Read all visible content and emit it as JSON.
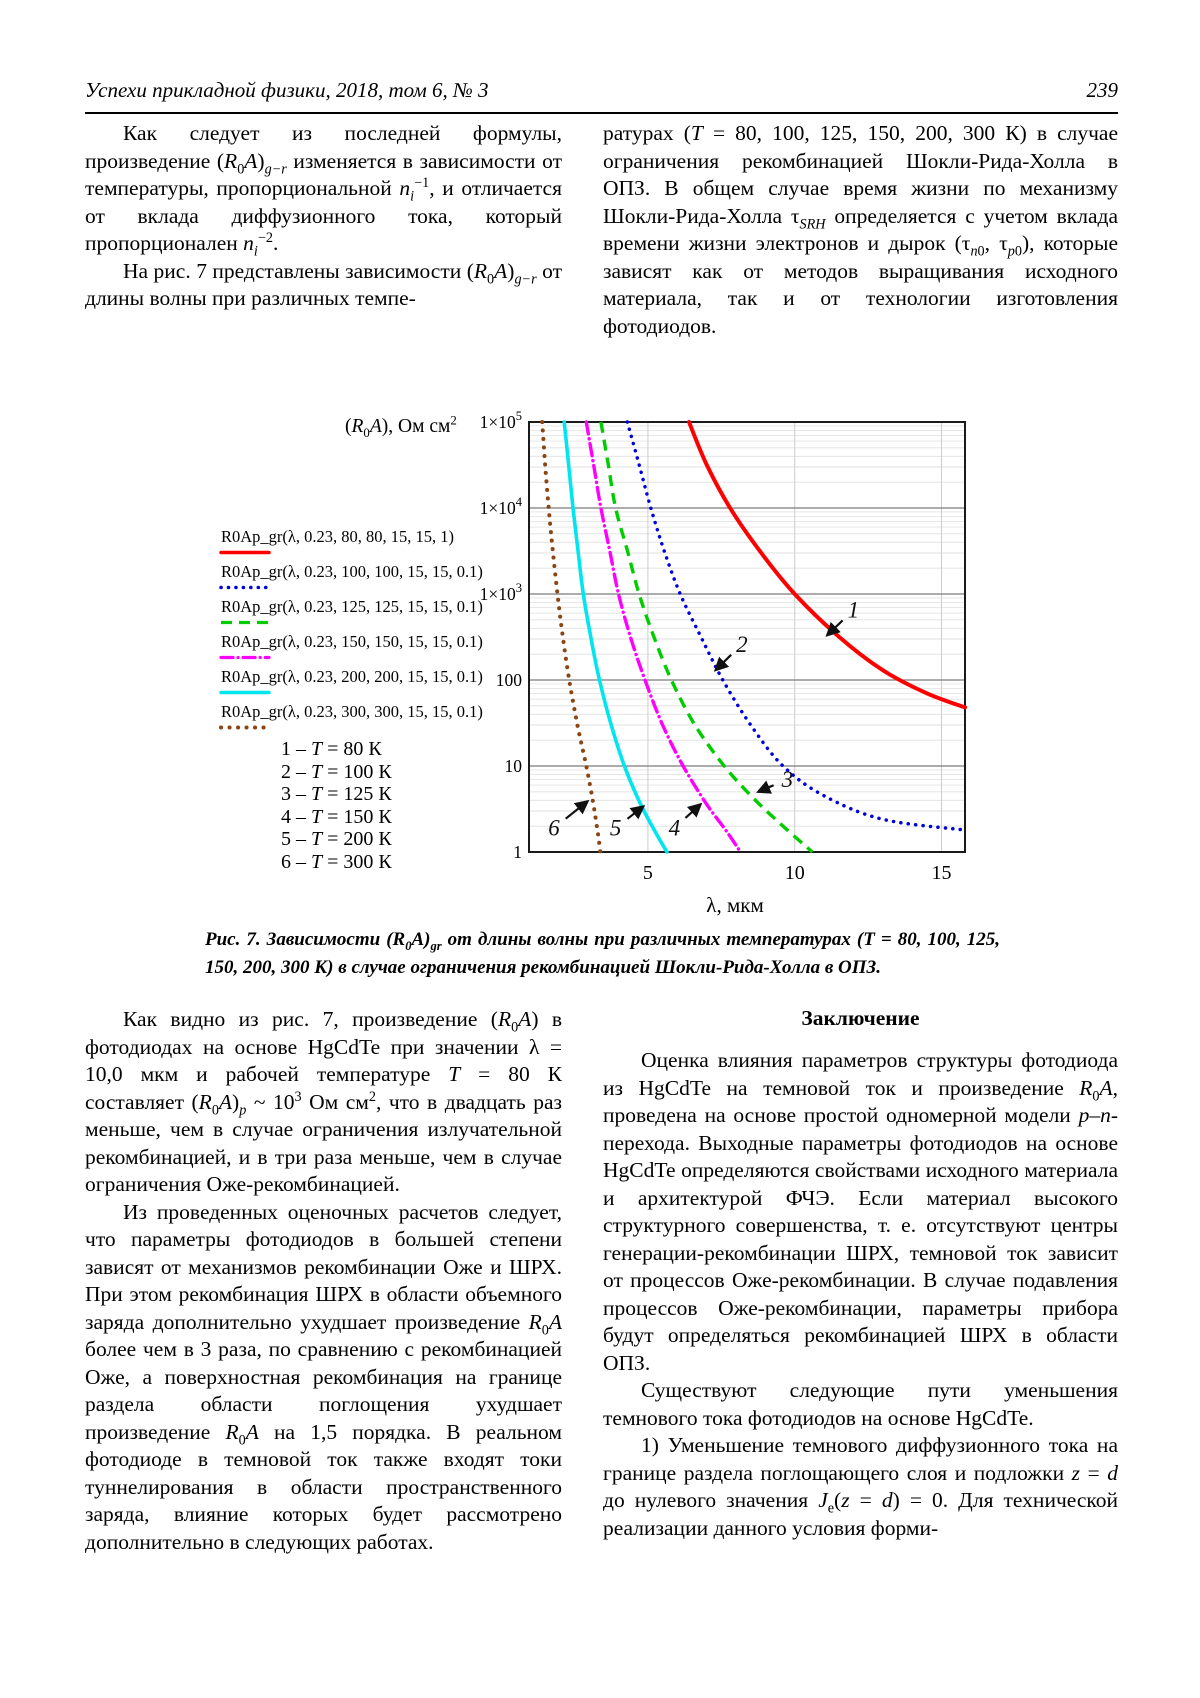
{
  "header": {
    "journal": "Успехи прикладной физики, 2018, том 6, № 3",
    "page_number": "239"
  },
  "top_left": {
    "p1_html": "Как следует из последней формулы, произведение (<i>R</i><sub>0</sub><i>A</i>)<sub><i>g−r</i></sub> изменяется в зависимости от температуры, пропорциональной <i>n</i><sub><i>i</i></sub><sup>−1</sup>, и отличается от вклада диффузионного тока, который пропорционален <i>n</i><sub><i>i</i></sub><sup>−2</sup>.",
    "p2_html": "На рис. 7 представлены зависимости (<i>R</i><sub>0</sub><i>A</i>)<sub><i>g−r</i></sub> от длины волны при различных темпе-"
  },
  "top_right": {
    "p1_html": "ратурах (<i>T</i> = 80, 100, 125, 150, 200, 300 К) в случае ограничения рекомбинацией Шокли-Рида-Холла в ОПЗ. В общем случае время жизни по механизму Шокли-Рида-Холла τ<sub><i>SRH</i></sub> определяется с учетом вклада времени жизни электронов и дырок (τ<sub><i>n</i>0</sub>, τ<sub><i>p</i>0</sub>), которые зависят как от методов выращивания исходного материала, так и от технологии изготовления фотодиодов."
  },
  "figure": {
    "y_axis_title_html": "(<i>R</i><sub>0</sub><i>A</i>), Ом см<sup>2</sup>",
    "legend": [
      {
        "label": "R0Ap_gr(λ, 0.23, 80, 80, 15, 15, 1)",
        "color": "#ff0000",
        "style": "solid",
        "width": 3.5
      },
      {
        "label": "R0Ap_gr(λ, 0.23, 100, 100, 15, 15, 0.1)",
        "color": "#0000dd",
        "style": "dotted",
        "width": 3.5
      },
      {
        "label": "R0Ap_gr(λ, 0.23, 125, 125, 15, 15, 0.1)",
        "color": "#00cc00",
        "style": "dashed",
        "width": 3.2
      },
      {
        "label": "R0Ap_gr(λ, 0.23, 150, 150, 15, 15, 0.1)",
        "color": "#ff00ff",
        "style": "dashdot",
        "width": 3.2
      },
      {
        "label": "R0Ap_gr(λ, 0.23, 200, 200, 15, 15, 0.1)",
        "color": "#00e5ee",
        "style": "solid",
        "width": 3.5
      },
      {
        "label": "R0Ap_gr(λ, 0.23, 300, 300, 15, 15, 0.1)",
        "color": "#8b4513",
        "style": "dotted",
        "width": 4
      }
    ],
    "temp_key": [
      "1 – <i>T</i> = 80 К",
      "2 – <i>T</i> = 100 К",
      "3 – <i>T</i> = 125 К",
      "4 – <i>T</i> = 150 К",
      "5 – <i>T</i> = 200 К",
      "6 – <i>T</i> = 300 К"
    ],
    "caption_html": "Рис. 7. Зависимости (R<sub>0</sub>A)<sub>gr</sub> от длины волны при различных температурах (T = 80, 100, 125, 150, 200, 300 К) в случае ограничения рекомбинацией Шокли-Рида-Холла в ОПЗ."
  },
  "chart_data": {
    "type": "line",
    "xlabel": "λ, мкм",
    "ylabel": "(R0A), Ом см2",
    "x_range": [
      0.95,
      15.8
    ],
    "x_ticks": [
      5,
      10,
      15
    ],
    "y_log_range": [
      1,
      100000
    ],
    "y_tick_values": [
      100000,
      10000,
      1000,
      100,
      10,
      1
    ],
    "y_tick_labels": [
      "1×10^5",
      "1×10^4",
      "1×10^3",
      "100",
      "10",
      "1"
    ],
    "grid": "log minor horizontal + vertical at x ticks",
    "legend_position": "outside-left",
    "series": [
      {
        "name": "1: T = 80 K",
        "color": "#ff0000",
        "style": "solid",
        "width": 4,
        "points": [
          [
            6.4,
            100000
          ],
          [
            7.0,
            32000
          ],
          [
            7.8,
            10000
          ],
          [
            8.8,
            3200
          ],
          [
            10.0,
            1000
          ],
          [
            11.5,
            320
          ],
          [
            13.0,
            130
          ],
          [
            14.5,
            70
          ],
          [
            15.8,
            48
          ]
        ]
      },
      {
        "name": "2: T = 100 K",
        "color": "#0000dd",
        "style": "dotted",
        "width": 3.5,
        "points": [
          [
            4.3,
            100000
          ],
          [
            4.7,
            32000
          ],
          [
            5.1,
            10000
          ],
          [
            5.55,
            3200
          ],
          [
            6.1,
            1000
          ],
          [
            6.8,
            320
          ],
          [
            7.55,
            100
          ],
          [
            8.5,
            30
          ],
          [
            9.6,
            10
          ],
          [
            11.0,
            4.5
          ],
          [
            13.0,
            2.4
          ],
          [
            15.8,
            1.8
          ]
        ]
      },
      {
        "name": "3: T = 125 K",
        "color": "#00cc00",
        "style": "dashed",
        "width": 3.4,
        "points": [
          [
            3.4,
            100000
          ],
          [
            3.65,
            32000
          ],
          [
            3.9,
            10000
          ],
          [
            4.3,
            3200
          ],
          [
            4.7,
            1000
          ],
          [
            5.2,
            320
          ],
          [
            5.8,
            100
          ],
          [
            6.6,
            30
          ],
          [
            7.6,
            10
          ],
          [
            8.6,
            4.2
          ],
          [
            9.6,
            2.0
          ],
          [
            10.6,
            1.0
          ]
        ]
      },
      {
        "name": "4: T = 150 K",
        "color": "#ff00ff",
        "style": "dashdot",
        "width": 3.4,
        "points": [
          [
            2.9,
            100000
          ],
          [
            3.15,
            32000
          ],
          [
            3.4,
            10000
          ],
          [
            3.7,
            3200
          ],
          [
            4.0,
            1000
          ],
          [
            4.4,
            320
          ],
          [
            4.9,
            100
          ],
          [
            5.5,
            30
          ],
          [
            6.2,
            10
          ],
          [
            7.0,
            3.6
          ],
          [
            7.7,
            1.7
          ],
          [
            8.15,
            1.0
          ]
        ]
      },
      {
        "name": "5: T = 200 K",
        "color": "#00e5ee",
        "style": "solid",
        "width": 3.6,
        "points": [
          [
            2.15,
            100000
          ],
          [
            2.3,
            32000
          ],
          [
            2.45,
            10000
          ],
          [
            2.62,
            3200
          ],
          [
            2.8,
            1000
          ],
          [
            3.05,
            320
          ],
          [
            3.35,
            100
          ],
          [
            3.75,
            30
          ],
          [
            4.2,
            10
          ],
          [
            4.75,
            3.6
          ],
          [
            5.3,
            1.6
          ],
          [
            5.65,
            1.0
          ]
        ]
      },
      {
        "name": "6: T = 300 K",
        "color": "#8b4513",
        "style": "dotted",
        "width": 4,
        "points": [
          [
            1.4,
            100000
          ],
          [
            1.5,
            32000
          ],
          [
            1.62,
            10000
          ],
          [
            1.76,
            3200
          ],
          [
            1.92,
            1000
          ],
          [
            2.1,
            320
          ],
          [
            2.32,
            100
          ],
          [
            2.6,
            30
          ],
          [
            2.9,
            10
          ],
          [
            3.12,
            4.0
          ],
          [
            3.28,
            1.8
          ],
          [
            3.38,
            1.0
          ]
        ]
      }
    ],
    "annotations": [
      {
        "text": "1",
        "label_at": [
          12.0,
          650
        ],
        "arrow_to": [
          11.1,
          330
        ]
      },
      {
        "text": "2",
        "label_at": [
          8.2,
          260
        ],
        "arrow_to": [
          7.3,
          130
        ]
      },
      {
        "text": "3",
        "label_at": [
          9.75,
          7.0
        ],
        "arrow_to": [
          8.75,
          5.0
        ]
      },
      {
        "text": "4",
        "label_at": [
          5.9,
          1.9
        ],
        "arrow_to": [
          6.8,
          3.6
        ]
      },
      {
        "text": "5",
        "label_at": [
          3.9,
          1.9
        ],
        "arrow_to": [
          4.85,
          3.4
        ]
      },
      {
        "text": "6",
        "label_at": [
          1.8,
          1.9
        ],
        "arrow_to": [
          2.95,
          3.9
        ]
      }
    ]
  },
  "bottom_left": {
    "p1_html": "Как видно из рис. 7, произведение (<i>R</i><sub>0</sub><i>A</i>) в фотодиодах на основе HgCdTe при значении λ = 10,0 мкм и рабочей температуре <i>T</i> = 80 К составляет (<i>R</i><sub>0</sub><i>A</i>)<sub><i>p</i></sub> ~ 10<sup>3</sup> Ом см<sup>2</sup>, что в двадцать раз меньше, чем в случае ограничения излучательной рекомбинацией, и в три раза меньше, чем в случае ограничения Оже-рекомбинацией.",
    "p2_html": "Из проведенных оценочных расчетов следует, что параметры фотодиодов в большей степени зависят от механизмов рекомбинации Оже и ШРХ. При этом рекомбинация ШРХ в области объемного заряда дополнительно ухудшает произведение <i>R</i><sub>0</sub><i>A</i> более чем в 3 раза, по сравнению с рекомбинацией Оже, а поверхностная рекомбинация на границе раздела области поглощения ухудшает произведение <i>R</i><sub>0</sub><i>A</i> на 1,5 порядка. В реальном фотодиоде в темновой ток также входят токи туннелирования в области пространственного заряда, влияние которых будет рассмотрено дополнительно в следующих работах."
  },
  "bottom_right": {
    "heading": "Заключение",
    "p1_html": "Оценка влияния параметров структуры фотодиода из HgCdTe на темновой ток и произведение <i>R</i><sub>0</sub><i>A</i>, проведена на основе простой одномерной модели <i>p</i>–<i>n</i>-перехода. Выходные параметры фотодиодов на основе HgCdTe определяются свойствами исходного материала и архитектурой ФЧЭ. Если материал высокого структурного совершенства, т. е. отсутствуют центры генерации-рекомбинации ШРХ, темновой ток зависит от процессов Оже-рекомбинации. В случае подавления процессов Оже-рекомбинации, параметры прибора будут определяться рекомбинацией ШРХ в области ОПЗ.",
    "p2_html": "Существуют следующие пути уменьшения темнового тока фотодиодов на основе HgCdTe.",
    "p3_html": "1) Уменьшение темнового диффузионного тока на границе раздела поглощающего слоя и подложки <i>z</i> = <i>d</i> до нулевого значения <i>J</i><sub>e</sub>(<i>z</i> = <i>d</i>) = 0. Для технической реализации данного условия форми-"
  }
}
